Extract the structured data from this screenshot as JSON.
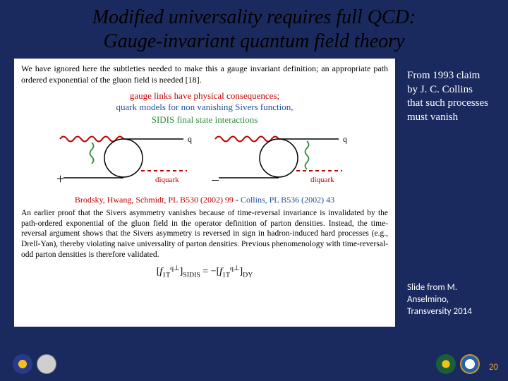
{
  "title_line1": "Modified universality requires full QCD:",
  "title_line2": "Gauge-invariant quantum field theory",
  "para1": "We have ignored here the subtleties needed to make this a gauge invariant definition; an appropriate path ordered exponential of the gluon field is needed [18].",
  "gauge_links_red": "gauge links have physical consequences;",
  "gauge_links_blue": "quark models for non vanishing Sivers function,",
  "sidis_label": "SIDIS final state interactions",
  "diagram": {
    "quark_label": "q",
    "diquark_label": "diquark",
    "plus": "+",
    "minus": "–",
    "wave_color": "#c00000",
    "gluon_color": "#2e8b3d",
    "diquark_color": "#c00000",
    "line_color": "#000000"
  },
  "refs": {
    "brodsky": "Brodsky, Hwang, Schmidt, PL B530 (2002) 99",
    "sep": " - ",
    "collins": "Collins, PL B536 (2002) 43"
  },
  "para2": "An earlier proof that the Sivers asymmetry vanishes because of time-reversal invariance is invalidated by the path-ordered exponential of the gluon field in the operator definition of parton densities. Instead, the time-reversal argument shows that the Sivers asymmetry is reversed in sign in hadron-induced hard processes (e.g., Drell-Yan), thereby violating naive universality of parton densities. Previous phenomenology with time-reversal-odd parton densities is therefore validated.",
  "formula_html": "[<i>f</i><span class='sub'>1T</span><span class='sup'>q⊥</span>]<span class='sub'>SIDIS</span> = −[<i>f</i><span class='sub'>1T</span><span class='sup'>q⊥</span>]<span class='sub'>DY</span>",
  "side_note1": "From 1993 claim by J. C. Collins that such processes must vanish",
  "side_note2": "Slide from M. Anselmino, Transversity 2014",
  "page_number": "20",
  "logos": {
    "left1_bg": "#2a3a8a",
    "left1_accent": "#f5c018",
    "left2_bg": "#cfcfcf",
    "right1_bg": "#1a5f3a",
    "right1_accent": "#f5c018",
    "right2_bg": "#ffffff",
    "right2_accent": "#2a5faa"
  }
}
